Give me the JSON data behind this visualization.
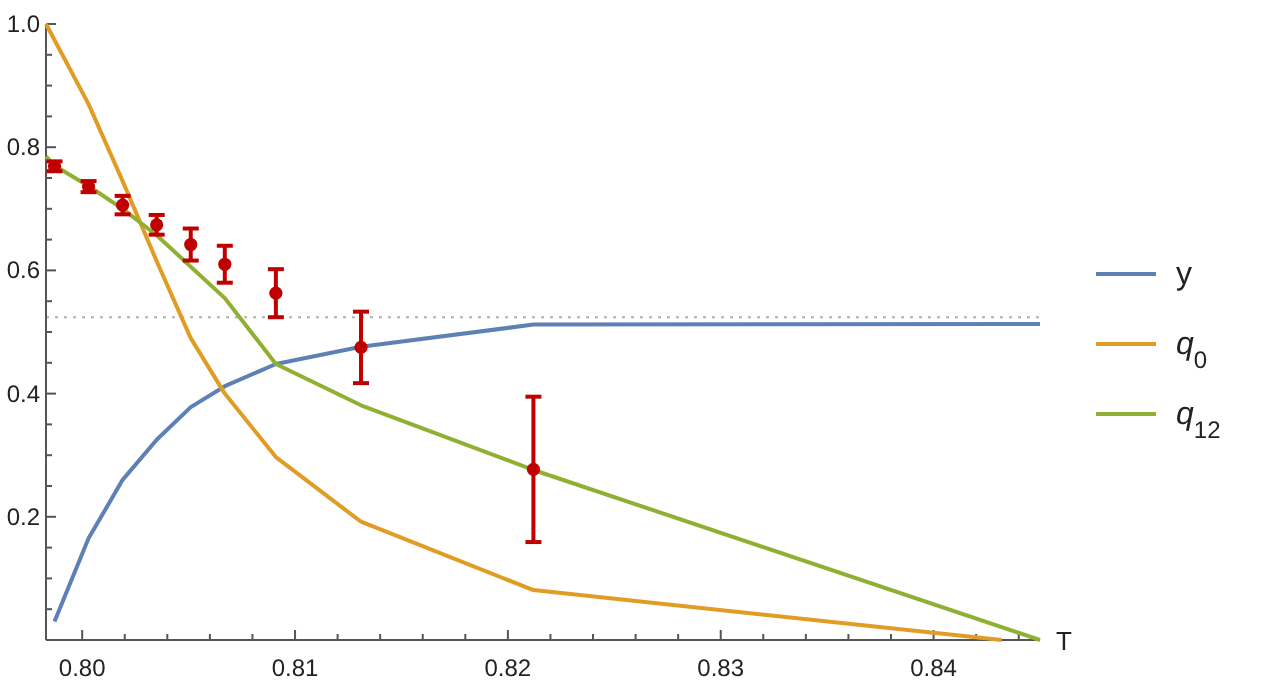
{
  "chart_data": {
    "type": "line",
    "xlabel": "T",
    "x": [
      0.7987,
      0.8003,
      0.8019,
      0.8035,
      0.8051,
      0.8067,
      0.8091,
      0.8131,
      0.8212,
      0.845
    ],
    "series": [
      {
        "name": "y",
        "color": "#5e81b5",
        "values": [
          0.03,
          0.165,
          0.26,
          0.325,
          0.378,
          0.412,
          0.448,
          0.476,
          0.512,
          0.513
        ]
      },
      {
        "name": "q$_{0}$",
        "color": "#e19c24",
        "x": [
          0.7983,
          0.8003,
          0.8019,
          0.8035,
          0.8051,
          0.8067,
          0.8091,
          0.8131,
          0.8212,
          0.8432
        ],
        "values": [
          1.0,
          0.87,
          0.745,
          0.615,
          0.49,
          0.4,
          0.297,
          0.192,
          0.081,
          0.0
        ]
      },
      {
        "name": "q$_{12}$",
        "color": "#8fb032",
        "x": [
          0.7983,
          0.7987,
          0.8003,
          0.8019,
          0.8035,
          0.8051,
          0.8067,
          0.8091,
          0.8131,
          0.8212,
          0.845
        ],
        "values": [
          0.785,
          0.77,
          0.737,
          0.7,
          0.657,
          0.606,
          0.555,
          0.448,
          0.381,
          0.276,
          0.0
        ]
      },
      {
        "type": "scatter",
        "marker": "circle",
        "color": "#c00000",
        "x": [
          0.7987,
          0.8003,
          0.8019,
          0.8035,
          0.8051,
          0.8067,
          0.8091,
          0.8131,
          0.8212
        ],
        "values": [
          0.769,
          0.736,
          0.706,
          0.674,
          0.642,
          0.61,
          0.563,
          0.475,
          0.277
        ],
        "errors": [
          0.008,
          0.009,
          0.015,
          0.016,
          0.026,
          0.03,
          0.039,
          0.058,
          0.118
        ]
      }
    ],
    "ref_lines": [
      {
        "axis": "y",
        "value": 0.524,
        "color": "#b0b0b0",
        "line_style": "dotted"
      }
    ],
    "xlim": [
      0.7983,
      0.845
    ],
    "ylim": [
      0,
      1
    ],
    "xticks": [
      {
        "value": 0.8,
        "label": "0.80"
      },
      {
        "value": 0.802,
        "label": null
      },
      {
        "value": 0.804,
        "label": null
      },
      {
        "value": 0.806,
        "label": null
      },
      {
        "value": 0.808,
        "label": null
      },
      {
        "value": 0.81,
        "label": "0.81"
      },
      {
        "value": 0.812,
        "label": null
      },
      {
        "value": 0.814,
        "label": null
      },
      {
        "value": 0.816,
        "label": null
      },
      {
        "value": 0.818,
        "label": null
      },
      {
        "value": 0.82,
        "label": "0.82"
      },
      {
        "value": 0.822,
        "label": null
      },
      {
        "value": 0.824,
        "label": null
      },
      {
        "value": 0.826,
        "label": null
      },
      {
        "value": 0.828,
        "label": null
      },
      {
        "value": 0.83,
        "label": "0.83"
      },
      {
        "value": 0.832,
        "label": null
      },
      {
        "value": 0.834,
        "label": null
      },
      {
        "value": 0.836,
        "label": null
      },
      {
        "value": 0.838,
        "label": null
      },
      {
        "value": 0.84,
        "label": "0.84"
      },
      {
        "value": 0.842,
        "label": null
      },
      {
        "value": 0.844,
        "label": null
      }
    ],
    "yticks": [
      {
        "value": 0.05,
        "label": null
      },
      {
        "value": 0.1,
        "label": null
      },
      {
        "value": 0.15,
        "label": null
      },
      0.2,
      {
        "value": 0.25,
        "label": null
      },
      {
        "value": 0.3,
        "label": null
      },
      {
        "value": 0.35,
        "label": null
      },
      0.4,
      {
        "value": 0.45,
        "label": null
      },
      {
        "value": 0.5,
        "label": null
      },
      {
        "value": 0.55,
        "label": null
      },
      0.6,
      {
        "value": 0.65,
        "label": null
      },
      {
        "value": 0.7,
        "label": null
      },
      {
        "value": 0.75,
        "label": null
      },
      0.8,
      {
        "value": 0.85,
        "label": null
      },
      {
        "value": 0.9,
        "label": null
      },
      {
        "value": 0.95,
        "label": null
      },
      {
        "value": 1,
        "label": "1.0"
      }
    ],
    "marker": "none",
    "line_style": "solid",
    "legend": "right",
    "grid": false
  }
}
